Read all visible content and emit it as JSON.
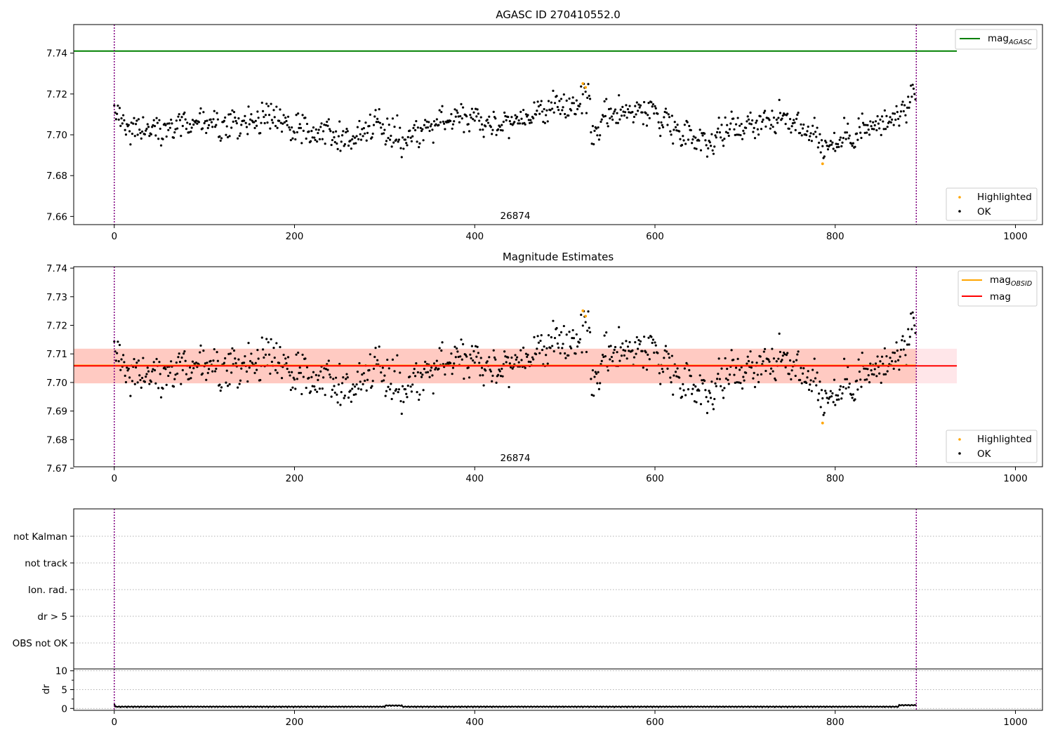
{
  "chart_data": [
    {
      "type": "scatter",
      "title": "AGASC ID 270410552.0",
      "xlim": [
        -45,
        1030
      ],
      "ylim": [
        7.656,
        7.754
      ],
      "xticks": [
        0,
        200,
        400,
        600,
        800,
        1000
      ],
      "yticks": [
        7.66,
        7.68,
        7.7,
        7.72,
        7.74
      ],
      "ytick_labels": [
        "7.66",
        "7.68",
        "7.70",
        "7.72",
        "7.74"
      ],
      "vlines": [
        0,
        890
      ],
      "obsid_label": "26874",
      "obsid_label_x": 445,
      "hline": {
        "name": "mag",
        "sub": "AGASC",
        "value": 7.741,
        "color": "#008000"
      },
      "legend_lines": [
        {
          "name": "mag",
          "sub": "AGASC",
          "color": "#008000"
        }
      ],
      "legend_points": [
        {
          "name": "Highlighted",
          "color": "#ffa500"
        },
        {
          "name": "OK",
          "color": "#000000"
        }
      ],
      "grid": false
    },
    {
      "type": "scatter",
      "title": "Magnitude Estimates",
      "xlim": [
        -45,
        1030
      ],
      "ylim": [
        7.6705,
        7.7405
      ],
      "xticks": [
        0,
        200,
        400,
        600,
        800,
        1000
      ],
      "yticks": [
        7.67,
        7.68,
        7.69,
        7.7,
        7.71,
        7.72,
        7.73,
        7.74
      ],
      "ytick_labels": [
        "7.67",
        "7.68",
        "7.69",
        "7.70",
        "7.71",
        "7.72",
        "7.73",
        "7.74"
      ],
      "vlines": [
        0,
        890
      ],
      "obsid_label": "26874",
      "obsid_label_x": 445,
      "bands": [
        {
          "y0": 7.6997,
          "y1": 7.7118,
          "x0": -45,
          "x1": 890,
          "color": "#ffa07a",
          "opacity": 0.45
        },
        {
          "y0": 7.6997,
          "y1": 7.7118,
          "x0": -45,
          "x1": 935,
          "color": "#ffb6c1",
          "opacity": 0.35
        }
      ],
      "lines": [
        {
          "name": "mag",
          "sub": "OBSID",
          "y": 7.706,
          "x0": -45,
          "x1": 890,
          "color": "#ffa500"
        },
        {
          "name": "mag",
          "sub": "",
          "y": 7.7058,
          "x0": -45,
          "x1": 935,
          "color": "#ff0000"
        }
      ],
      "legend_lines": [
        {
          "name": "mag",
          "sub": "OBSID",
          "color": "#ffa500"
        },
        {
          "name": "mag",
          "sub": "",
          "color": "#ff0000"
        }
      ],
      "legend_points": [
        {
          "name": "Highlighted",
          "color": "#ffa500"
        },
        {
          "name": "OK",
          "color": "#000000"
        }
      ],
      "grid": false
    },
    {
      "type": "flags",
      "categories": [
        "not Kalman",
        "not track",
        "Ion. rad.",
        "dr > 5",
        "OBS not OK"
      ],
      "vlines": [
        0,
        890
      ],
      "grid": "horizontal-dotted"
    },
    {
      "type": "line",
      "ylabel": "dr",
      "xlim": [
        -45,
        1030
      ],
      "ylim": [
        -0.5,
        10.5
      ],
      "xticks": [
        0,
        200,
        400,
        600,
        800,
        1000
      ],
      "yticks": [
        0,
        5,
        10
      ],
      "ytick_labels": [
        "0",
        "5",
        "10"
      ],
      "vlines": [
        0,
        890
      ],
      "dr_baseline": 0.3,
      "dr_max_x": 890,
      "grid": "horizontal-dotted"
    }
  ],
  "samples": {
    "count": 890,
    "anchors_x": [
      0,
      20,
      60,
      90,
      130,
      160,
      180,
      200,
      230,
      260,
      290,
      320,
      360,
      390,
      420,
      450,
      480,
      500,
      515,
      520,
      527,
      530,
      540,
      560,
      580,
      600,
      620,
      640,
      660,
      680,
      700,
      730,
      760,
      780,
      790,
      820,
      860,
      890
    ],
    "anchors_y": [
      7.71,
      7.703,
      7.704,
      7.706,
      7.703,
      7.708,
      7.71,
      7.701,
      7.704,
      7.697,
      7.706,
      7.698,
      7.706,
      7.71,
      7.705,
      7.708,
      7.713,
      7.712,
      7.717,
      7.72,
      7.715,
      7.7,
      7.706,
      7.712,
      7.712,
      7.711,
      7.704,
      7.7,
      7.697,
      7.703,
      7.705,
      7.708,
      7.705,
      7.7,
      7.693,
      7.701,
      7.706,
      7.717
    ],
    "spread": 0.0035,
    "highlighted": [
      {
        "x": 520,
        "y": 7.7251
      },
      {
        "x": 523,
        "y": 7.7232
      },
      {
        "x": 786,
        "y": 7.6858
      }
    ]
  }
}
